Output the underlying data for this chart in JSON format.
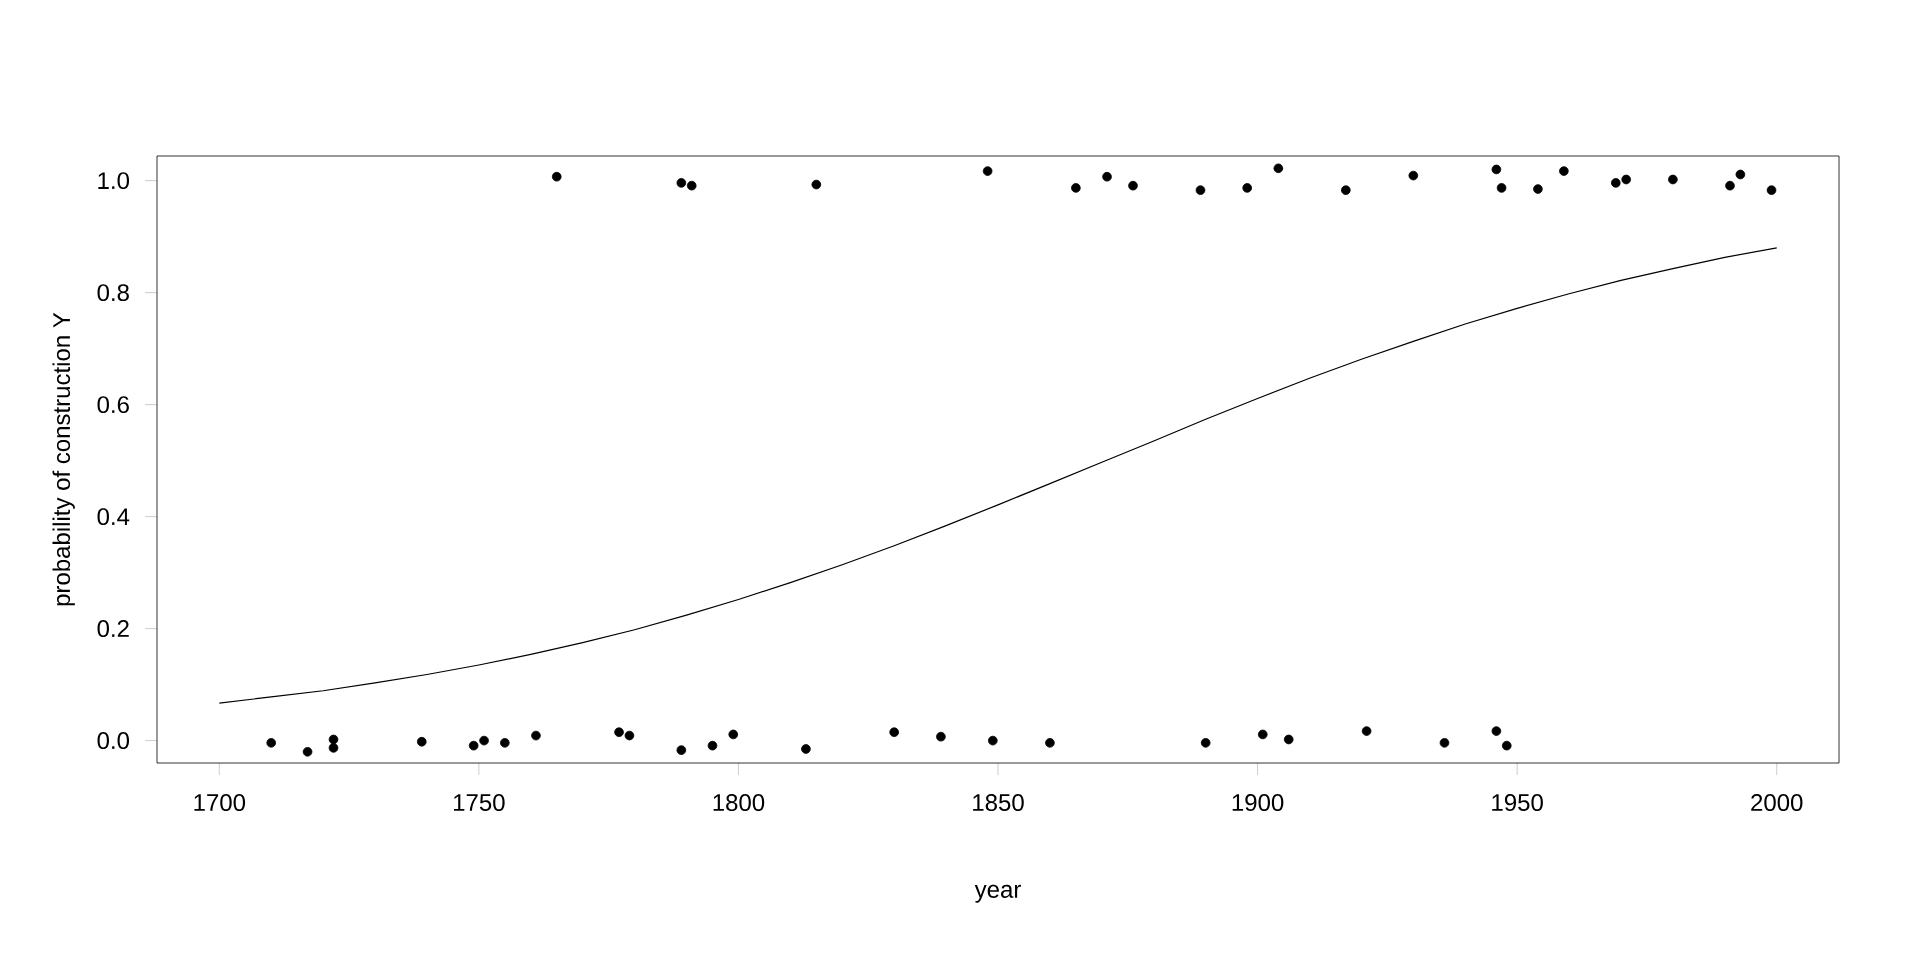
{
  "chart_data": {
    "type": "scatter",
    "xlabel": "year",
    "ylabel": "probability of construction Y",
    "xlim": [
      1688,
      2012
    ],
    "ylim": [
      -0.04,
      1.044
    ],
    "xticks": [
      1700,
      1750,
      1800,
      1850,
      1900,
      1950,
      2000
    ],
    "yticks": [
      {
        "value": 0,
        "label": "0.0"
      },
      0.2,
      0.4,
      0.6,
      0.8,
      {
        "value": 1,
        "label": "1.0"
      }
    ],
    "grid": false,
    "series": [
      {
        "marker": "circle",
        "color": "#000000",
        "x": [
          1765,
          1789,
          1791,
          1815,
          1848,
          1865,
          1871,
          1876,
          1889,
          1898,
          1904,
          1917,
          1930,
          1946,
          1947,
          1954,
          1959,
          1969,
          1971,
          1980,
          1991,
          1993,
          1999,
          1710,
          1717,
          1722,
          1722,
          1739,
          1749,
          1751,
          1755,
          1761,
          1777,
          1779,
          1789,
          1795,
          1799,
          1813,
          1830,
          1839,
          1849,
          1860,
          1890,
          1901,
          1906,
          1921,
          1936,
          1946,
          1948
        ],
        "values": [
          1.007,
          0.996,
          0.991,
          0.993,
          1.017,
          0.987,
          1.007,
          0.991,
          0.983,
          0.987,
          1.022,
          0.983,
          1.009,
          1.02,
          0.987,
          0.985,
          1.017,
          0.996,
          1.002,
          1.002,
          0.991,
          1.011,
          0.983,
          -0.004,
          -0.02,
          0.002,
          -0.013,
          -0.002,
          -0.009,
          0.0,
          -0.004,
          0.009,
          0.015,
          0.009,
          -0.017,
          -0.009,
          0.011,
          -0.015,
          0.015,
          0.007,
          0.0,
          -0.004,
          -0.004,
          0.011,
          0.002,
          0.017,
          -0.004,
          0.017,
          -0.009
        ]
      },
      {
        "type": "line",
        "marker": "none",
        "color": "#000000",
        "x": [
          1700,
          1710,
          1720,
          1730,
          1740,
          1750,
          1760,
          1770,
          1780,
          1790,
          1800,
          1810,
          1820,
          1830,
          1840,
          1850,
          1860,
          1870,
          1880,
          1890,
          1900,
          1910,
          1920,
          1930,
          1940,
          1950,
          1960,
          1970,
          1980,
          1990,
          2000
        ],
        "values": [
          0.067,
          0.078,
          0.089,
          0.103,
          0.118,
          0.135,
          0.154,
          0.175,
          0.198,
          0.224,
          0.252,
          0.282,
          0.314,
          0.348,
          0.384,
          0.421,
          0.459,
          0.497,
          0.535,
          0.574,
          0.611,
          0.647,
          0.681,
          0.713,
          0.744,
          0.772,
          0.798,
          0.822,
          0.843,
          0.863,
          0.88
        ]
      }
    ]
  }
}
